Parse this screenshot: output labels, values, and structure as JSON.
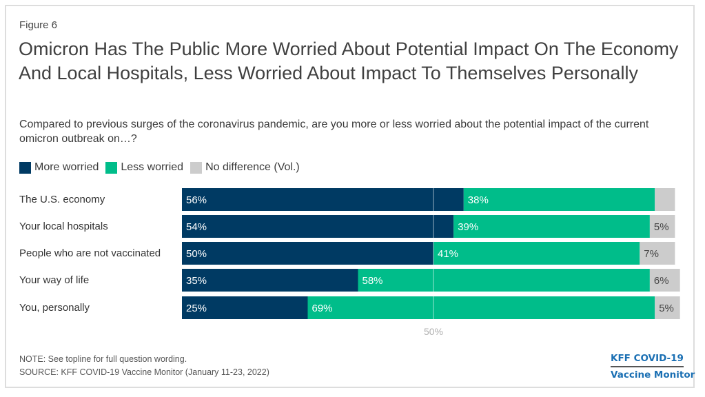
{
  "figure_label": "Figure 6",
  "title": "Omicron Has The Public More Worried About Potential Impact On The Economy And Local Hospitals, Less Worried About Impact To Themselves Personally",
  "subtitle": "Compared to previous surges of the coronavirus pandemic, are you more or less worried about the potential impact of the current omicron outbreak on…?",
  "legend": [
    {
      "label": "More worried",
      "color": "#003a63"
    },
    {
      "label": "Less worried",
      "color": "#00bd8a"
    },
    {
      "label": "No difference (Vol.)",
      "color": "#cccccc"
    }
  ],
  "footer": {
    "note": "NOTE: See topline for full question wording.",
    "source": "SOURCE: KFF COVID-19 Vaccine Monitor (January 11-23, 2022)"
  },
  "brand": {
    "line1": "KFF COVID-19",
    "line2": "Vaccine Monitor",
    "color": "#1a6fb3"
  },
  "chart_data": {
    "type": "bar",
    "orientation": "horizontal",
    "stacked": true,
    "categories": [
      "The U.S. economy",
      "Your local hospitals",
      "People who are not vaccinated",
      "Your way of life",
      "You, personally"
    ],
    "series": [
      {
        "name": "More worried",
        "color": "#003a63",
        "values": [
          56,
          54,
          50,
          35,
          25
        ],
        "labels": [
          "56%",
          "54%",
          "50%",
          "35%",
          "25%"
        ],
        "label_color": "#ffffff"
      },
      {
        "name": "Less worried",
        "color": "#00bd8a",
        "values": [
          38,
          39,
          41,
          58,
          69
        ],
        "labels": [
          "38%",
          "39%",
          "41%",
          "58%",
          "69%"
        ],
        "label_color": "#ffffff"
      },
      {
        "name": "No difference (Vol.)",
        "color": "#cccccc",
        "values": [
          4,
          5,
          7,
          6,
          5
        ],
        "labels": [
          "",
          "5%",
          "7%",
          "6%",
          "5%"
        ],
        "label_color": "#444444"
      }
    ],
    "reference_line": {
      "value": 50,
      "label": "50%",
      "color": "#ffffff",
      "label_color": "#b0b0b0"
    },
    "xlim": [
      0,
      100
    ],
    "title": "Omicron Has The Public More Worried About Potential Impact On The Economy And Local Hospitals, Less Worried About Impact To Themselves Personally",
    "xlabel": "",
    "ylabel": "",
    "grid": false,
    "legend_position": "top-left"
  }
}
